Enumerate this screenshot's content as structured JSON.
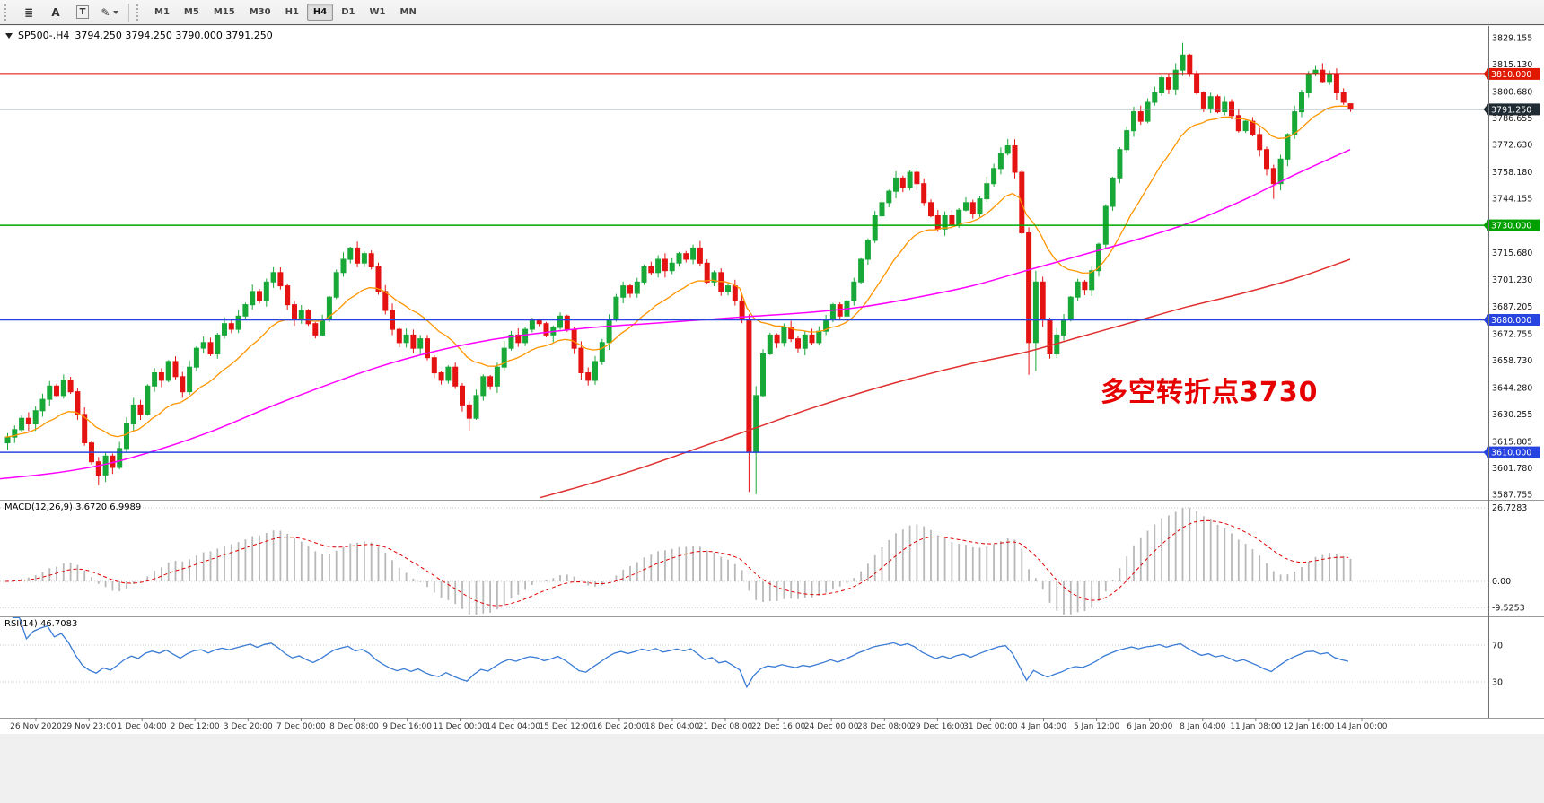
{
  "toolbar": {
    "tools": [
      {
        "id": "charts-list",
        "glyph": "≣",
        "caret": false
      },
      {
        "id": "cursor-a",
        "glyph": "A",
        "caret": false
      },
      {
        "id": "text-tool",
        "glyph": "T",
        "caret": false,
        "boxed": true
      },
      {
        "id": "draw-tools",
        "glyph": "✎",
        "caret": true
      }
    ],
    "timeframes": [
      "M1",
      "M5",
      "M15",
      "M30",
      "H1",
      "H4",
      "D1",
      "W1",
      "MN"
    ],
    "active_timeframe": "H4"
  },
  "chart": {
    "title": "SP500-,H4",
    "ohlc": "3794.250 3794.250 3790.000 3791.250",
    "annotation": "多空转折点3730",
    "annotation_color": "#e60000"
  },
  "price_axis": {
    "labels": [
      3829.155,
      3815.13,
      3800.68,
      3786.655,
      3772.63,
      3758.18,
      3744.155,
      3715.68,
      3701.23,
      3687.205,
      3672.755,
      3658.73,
      3644.28,
      3630.255,
      3615.805,
      3601.78,
      3587.755
    ],
    "tagged": [
      {
        "price": 3810.0,
        "label": "3810.000",
        "bg": "#e01800",
        "line": "#dd0000",
        "line_width": 2
      },
      {
        "price": 3791.25,
        "label": "3791.250",
        "bg": "#1f2b33",
        "line": "#8a9298",
        "line_width": 1
      },
      {
        "price": 3730.0,
        "label": "3730.000",
        "bg": "#00a000",
        "line": "#00a800",
        "line_width": 1.5
      },
      {
        "price": 3680.0,
        "label": "3680.000",
        "bg": "#2743e0",
        "line": "#2743e0",
        "line_width": 1.5
      },
      {
        "price": 3610.0,
        "label": "3610.000",
        "bg": "#2743e0",
        "line": "#2743e0",
        "line_width": 1.5
      }
    ]
  },
  "indicators": {
    "macd": {
      "label": "MACD(12,26,9) 3.6720 6.9989",
      "axis": [
        "26.7283",
        "0.00",
        "-9.5253"
      ],
      "hist_color": "#b8b8b8",
      "signal_color": "#e00000"
    },
    "rsi": {
      "label": "RSI(14) 46.7083",
      "levels": [
        70,
        30
      ],
      "color": "#3a7bd5"
    }
  },
  "time_axis": [
    "26 Nov 2020",
    "29 Nov 23:00",
    "1 Dec 04:00",
    "2 Dec 12:00",
    "3 Dec 20:00",
    "7 Dec 00:00",
    "8 Dec 08:00",
    "9 Dec 16:00",
    "11 Dec 00:00",
    "14 Dec 04:00",
    "15 Dec 12:00",
    "16 Dec 20:00",
    "18 Dec 04:00",
    "21 Dec 08:00",
    "22 Dec 16:00",
    "24 Dec 00:00",
    "28 Dec 08:00",
    "29 Dec 16:00",
    "31 Dec 00:00",
    "4 Jan 04:00",
    "5 Jan 12:00",
    "6 Jan 20:00",
    "8 Jan 04:00",
    "11 Jan 08:00",
    "12 Jan 16:00",
    "14 Jan 00:00"
  ],
  "chart_data": {
    "type": "candlestick",
    "symbol": "SP500-",
    "timeframe": "H4",
    "ylim": [
      3587.755,
      3829.155
    ],
    "last_ohlc": [
      3794.25,
      3794.25,
      3790.0,
      3791.25
    ],
    "first_open": 3615,
    "closes": [
      3618,
      3622,
      3628,
      3625,
      3632,
      3638,
      3645,
      3640,
      3648,
      3642,
      3630,
      3615,
      3605,
      3598,
      3608,
      3602,
      3612,
      3625,
      3635,
      3630,
      3645,
      3652,
      3648,
      3658,
      3650,
      3642,
      3655,
      3665,
      3668,
      3662,
      3672,
      3678,
      3675,
      3682,
      3688,
      3695,
      3690,
      3700,
      3705,
      3698,
      3688,
      3680,
      3685,
      3678,
      3672,
      3680,
      3692,
      3705,
      3712,
      3718,
      3710,
      3715,
      3708,
      3695,
      3685,
      3675,
      3668,
      3672,
      3665,
      3670,
      3660,
      3652,
      3648,
      3655,
      3645,
      3635,
      3628,
      3640,
      3650,
      3645,
      3655,
      3665,
      3672,
      3668,
      3675,
      3680,
      3678,
      3672,
      3676,
      3682,
      3675,
      3665,
      3652,
      3648,
      3658,
      3668,
      3680,
      3692,
      3698,
      3694,
      3700,
      3708,
      3705,
      3712,
      3706,
      3710,
      3715,
      3712,
      3718,
      3710,
      3700,
      3705,
      3695,
      3698,
      3690,
      3680,
      3610,
      3640,
      3662,
      3672,
      3668,
      3676,
      3670,
      3665,
      3672,
      3668,
      3674,
      3680,
      3688,
      3682,
      3690,
      3700,
      3712,
      3722,
      3735,
      3742,
      3748,
      3755,
      3750,
      3758,
      3752,
      3742,
      3735,
      3728,
      3735,
      3730,
      3738,
      3742,
      3736,
      3744,
      3752,
      3760,
      3768,
      3772,
      3758,
      3726,
      3668,
      3700,
      3680,
      3662,
      3672,
      3680,
      3692,
      3700,
      3696,
      3706,
      3720,
      3740,
      3755,
      3770,
      3780,
      3790,
      3785,
      3795,
      3800,
      3808,
      3802,
      3812,
      3820,
      3810,
      3800,
      3792,
      3798,
      3790,
      3795,
      3788,
      3780,
      3785,
      3778,
      3770,
      3760,
      3752,
      3765,
      3778,
      3790,
      3800,
      3810,
      3812,
      3806,
      3810,
      3800,
      3795,
      3791.25
    ],
    "overrides": {
      "13": [
        3605,
        3607.5,
        3592.5,
        3598
      ],
      "66": [
        3635,
        3637,
        3621.5,
        3628
      ],
      "106": [
        3680,
        3683,
        3589,
        3610
      ],
      "107": [
        3610,
        3645,
        3587.8,
        3640
      ],
      "146": [
        3726,
        3729,
        3651,
        3668
      ],
      "147": [
        3668,
        3706,
        3653,
        3700
      ],
      "168": [
        3812,
        3826.5,
        3809,
        3820
      ],
      "181": [
        3760,
        3762,
        3744,
        3752
      ],
      "192": [
        3794.25,
        3794.25,
        3790,
        3791.25
      ]
    },
    "bull_color": "#18a838",
    "bear_color": "#e51212",
    "ma_fast": {
      "color": "#ff9500",
      "period": 16
    },
    "ma_mid": {
      "color": "#ff00ff",
      "anchors": [
        [
          0,
          3596
        ],
        [
          0.04,
          3599
        ],
        [
          0.08,
          3604
        ],
        [
          0.12,
          3612
        ],
        [
          0.16,
          3622
        ],
        [
          0.2,
          3634
        ],
        [
          0.24,
          3645
        ],
        [
          0.28,
          3655
        ],
        [
          0.32,
          3663
        ],
        [
          0.36,
          3669
        ],
        [
          0.4,
          3673
        ],
        [
          0.44,
          3676
        ],
        [
          0.48,
          3678
        ],
        [
          0.52,
          3680
        ],
        [
          0.56,
          3682
        ],
        [
          0.6,
          3684
        ],
        [
          0.64,
          3687
        ],
        [
          0.68,
          3692
        ],
        [
          0.72,
          3698
        ],
        [
          0.76,
          3706
        ],
        [
          0.8,
          3714
        ],
        [
          0.84,
          3722
        ],
        [
          0.88,
          3731
        ],
        [
          0.92,
          3743
        ],
        [
          0.96,
          3757
        ],
        [
          1,
          3770
        ]
      ]
    },
    "ma_slow": {
      "color": "#e03030",
      "anchors": [
        [
          0.4,
          3586
        ],
        [
          0.44,
          3594
        ],
        [
          0.48,
          3603
        ],
        [
          0.52,
          3613
        ],
        [
          0.56,
          3623
        ],
        [
          0.6,
          3633
        ],
        [
          0.64,
          3642
        ],
        [
          0.68,
          3650
        ],
        [
          0.72,
          3657
        ],
        [
          0.76,
          3663
        ],
        [
          0.8,
          3671
        ],
        [
          0.84,
          3679
        ],
        [
          0.88,
          3687
        ],
        [
          0.92,
          3694
        ],
        [
          0.96,
          3702
        ],
        [
          1,
          3712
        ]
      ]
    }
  }
}
